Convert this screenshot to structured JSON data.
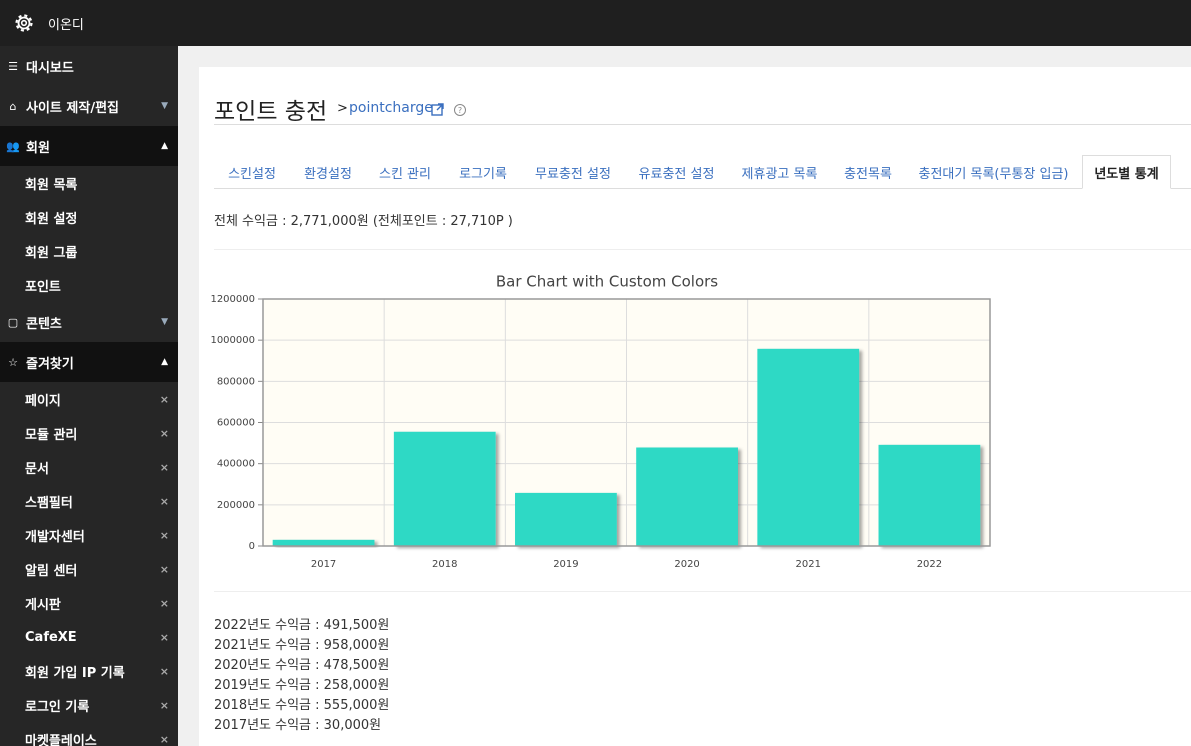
{
  "header": {
    "site_name": "이온디"
  },
  "sidebar": [
    {
      "label": "대시보드"
    },
    {
      "label": "사이트 제작/편집"
    },
    {
      "label": "회원",
      "items": [
        "회원 목록",
        "회원 설정",
        "회원 그룹",
        "포인트"
      ]
    },
    {
      "label": "콘텐츠"
    },
    {
      "label": "즐겨찾기",
      "items": [
        "페이지",
        "모듈 관리",
        "문서",
        "스팸필터",
        "개발자센터",
        "알림 센터",
        "게시판",
        "CafeXE",
        "회원 가입 IP 기록",
        "로그인 기록",
        "마켓플레이스"
      ]
    }
  ],
  "page": {
    "title": "포인트 충전",
    "separator": ">",
    "module": "pointcharge"
  },
  "tabs": [
    {
      "label": "스킨설정"
    },
    {
      "label": "환경설정"
    },
    {
      "label": "스킨 관리"
    },
    {
      "label": "로그기록"
    },
    {
      "label": "무료충전 설정"
    },
    {
      "label": "유료충전 설정"
    },
    {
      "label": "제휴광고 목록"
    },
    {
      "label": "충전목록"
    },
    {
      "label": "충전대기 목록(무통장 입금)"
    },
    {
      "label": "년도별 통계",
      "active": true
    }
  ],
  "summary": "전체 수익금 : 2,771,000원 (전체포인트 : 27,710P )",
  "chart_data": {
    "type": "bar",
    "title": "Bar Chart with Custom Colors",
    "categories": [
      "2017",
      "2018",
      "2019",
      "2020",
      "2021",
      "2022"
    ],
    "values": [
      30000,
      555000,
      258000,
      478500,
      958000,
      491500
    ],
    "color": "#2dd9c5",
    "ylim": [
      0,
      1200000
    ],
    "yticks": [
      0,
      200000,
      400000,
      600000,
      800000,
      1000000,
      1200000
    ],
    "grid": true
  },
  "yearly_totals": [
    "2022년도 수익금 : 491,500원",
    "2021년도 수익금 : 958,000원",
    "2020년도 수익금 : 478,500원",
    "2019년도 수익금 : 258,000원",
    "2018년도 수익금 : 555,000원",
    "2017년도 수익금 : 30,000원"
  ]
}
